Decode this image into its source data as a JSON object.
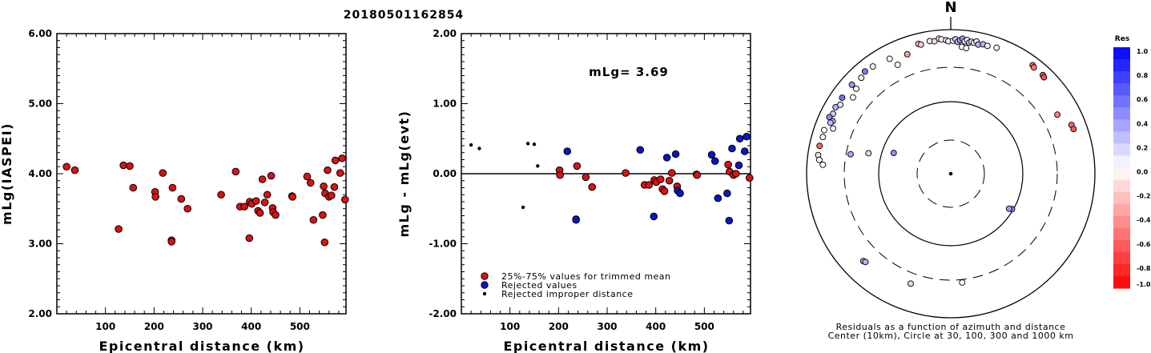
{
  "title": "20180501162854",
  "colors": {
    "trimmed": "#dd1111",
    "rejected": "#0a14c8",
    "improper": "#000000"
  },
  "chart_data": [
    {
      "type": "scatter",
      "xlabel": "Epicentral distance (km)",
      "ylabel": "mLg(IASPEI)",
      "xlim": [
        0,
        595
      ],
      "ylim": [
        2.0,
        6.0
      ],
      "x_ticks": [
        "100",
        "200",
        "300",
        "400",
        "500"
      ],
      "y_ticks": [
        "6.00",
        "5.00",
        "4.00",
        "3.00",
        "2.00"
      ],
      "series": [
        {
          "marker": "red-circle",
          "points": [
            [
              20,
              4.1
            ],
            [
              37,
              4.05
            ],
            [
              127,
              3.21
            ],
            [
              137,
              4.12
            ],
            [
              150,
              4.11
            ],
            [
              157,
              3.8
            ],
            [
              202,
              3.74
            ],
            [
              203,
              3.67
            ],
            [
              218,
              4.01
            ],
            [
              236,
              3.05
            ],
            [
              236,
              3.03
            ],
            [
              238,
              3.8
            ],
            [
              256,
              3.64
            ],
            [
              269,
              3.5
            ],
            [
              338,
              3.7
            ],
            [
              368,
              4.03
            ],
            [
              377,
              3.53
            ],
            [
              386,
              3.53
            ],
            [
              396,
              3.08
            ],
            [
              397,
              3.6
            ],
            [
              401,
              3.57
            ],
            [
              410,
              3.61
            ],
            [
              414,
              3.47
            ],
            [
              418,
              3.44
            ],
            [
              423,
              3.92
            ],
            [
              428,
              3.59
            ],
            [
              433,
              3.7
            ],
            [
              441,
              3.97
            ],
            [
              444,
              3.51
            ],
            [
              445,
              3.45
            ],
            [
              450,
              3.41
            ],
            [
              484,
              3.68
            ],
            [
              485,
              3.67
            ],
            [
              515,
              3.96
            ],
            [
              522,
              3.87
            ],
            [
              528,
              3.34
            ],
            [
              547,
              3.41
            ],
            [
              549,
              3.82
            ],
            [
              551,
              3.02
            ],
            [
              552,
              3.72
            ],
            [
              557,
              4.05
            ],
            [
              560,
              3.67
            ],
            [
              565,
              3.69
            ],
            [
              571,
              3.81
            ],
            [
              573,
              4.19
            ],
            [
              583,
              4.01
            ],
            [
              587,
              4.22
            ],
            [
              593,
              3.63
            ]
          ]
        }
      ]
    },
    {
      "type": "scatter",
      "xlabel": "Epicentral distance (km)",
      "ylabel": "mLg - mLg(evt)",
      "xlim": [
        0,
        595
      ],
      "ylim": [
        -2.0,
        2.0
      ],
      "x_ticks": [
        "100",
        "200",
        "300",
        "400",
        "500"
      ],
      "y_ticks": [
        "2.00",
        "1.00",
        "0.00",
        "-1.00",
        "-2.00"
      ],
      "annotation": "mLg= 3.69",
      "legend_position": "bottom-left",
      "series": [
        {
          "name": "25%-75% values for trimmed mean",
          "marker": "red-circle",
          "points": [
            [
              202,
              0.05
            ],
            [
              203,
              -0.02
            ],
            [
              236,
              -0.65
            ],
            [
              238,
              0.11
            ],
            [
              256,
              -0.05
            ],
            [
              269,
              -0.19
            ],
            [
              338,
              0.01
            ],
            [
              377,
              -0.16
            ],
            [
              386,
              -0.16
            ],
            [
              397,
              -0.09
            ],
            [
              401,
              -0.12
            ],
            [
              410,
              -0.08
            ],
            [
              414,
              -0.22
            ],
            [
              418,
              -0.25
            ],
            [
              428,
              -0.1
            ],
            [
              433,
              0.01
            ],
            [
              444,
              -0.18
            ],
            [
              484,
              -0.01
            ],
            [
              485,
              -0.02
            ],
            [
              549,
              0.13
            ],
            [
              552,
              0.03
            ],
            [
              560,
              -0.02
            ],
            [
              565,
              0.0
            ],
            [
              593,
              -0.06
            ]
          ]
        },
        {
          "name": "Rejected values",
          "marker": "blue-circle",
          "points": [
            [
              218,
              0.32
            ],
            [
              236,
              -0.66
            ],
            [
              368,
              0.34
            ],
            [
              396,
              -0.61
            ],
            [
              423,
              0.23
            ],
            [
              441,
              0.28
            ],
            [
              445,
              -0.24
            ],
            [
              450,
              -0.28
            ],
            [
              515,
              0.27
            ],
            [
              522,
              0.18
            ],
            [
              528,
              -0.35
            ],
            [
              547,
              -0.28
            ],
            [
              551,
              -0.67
            ],
            [
              557,
              0.36
            ],
            [
              571,
              0.12
            ],
            [
              573,
              0.5
            ],
            [
              583,
              0.32
            ],
            [
              587,
              0.53
            ]
          ]
        },
        {
          "name": "Rejected improper distance",
          "marker": "black-dot",
          "points": [
            [
              20,
              0.41
            ],
            [
              37,
              0.36
            ],
            [
              127,
              -0.48
            ],
            [
              137,
              0.43
            ],
            [
              150,
              0.42
            ],
            [
              157,
              0.11
            ]
          ]
        }
      ]
    },
    {
      "type": "polar-scatter",
      "north_label": "N",
      "caption_lines": [
        "Residuals as a function of azimuth and distance",
        "Center (10km), Circle at 30, 100, 300 and 1000 km"
      ],
      "rings_km": [
        30,
        100,
        300,
        1000
      ],
      "points": [
        [
          -14,
          720,
          -0.25
        ],
        [
          -13,
          690,
          -0.2
        ],
        [
          -9,
          730,
          -0.1
        ],
        [
          -7,
          710,
          -0.15
        ],
        [
          -5,
          760,
          0.15
        ],
        [
          -4,
          740,
          0.05
        ],
        [
          -2,
          715,
          0.1
        ],
        [
          -1,
          690,
          0.05
        ],
        [
          1,
          700,
          0.0
        ],
        [
          2,
          735,
          0.2
        ],
        [
          3,
          680,
          0.3
        ],
        [
          4,
          720,
          0.35
        ],
        [
          5,
          760,
          0.4
        ],
        [
          6,
          700,
          -0.1
        ],
        [
          7,
          740,
          0.0
        ],
        [
          8,
          690,
          0.25
        ],
        [
          9,
          715,
          -0.05
        ],
        [
          10,
          700,
          0.05
        ],
        [
          11,
          740,
          0.1
        ],
        [
          12,
          680,
          0.3
        ],
        [
          14,
          710,
          0.3
        ],
        [
          16,
          700,
          -0.1
        ],
        [
          20,
          725,
          0.05
        ],
        [
          5,
          585,
          0.0
        ],
        [
          7,
          570,
          0.0
        ],
        [
          -20,
          580,
          -0.4
        ],
        [
          -40,
          710,
          0.5
        ],
        [
          -36,
          690,
          -0.05
        ],
        [
          -28,
          640,
          0.0
        ],
        [
          -43,
          660,
          -0.1
        ],
        [
          -48,
          700,
          0.4
        ],
        [
          -55,
          690,
          0.55
        ],
        [
          -60,
          700,
          0.3
        ],
        [
          -63,
          680,
          0.2
        ],
        [
          -65,
          720,
          0.45
        ],
        [
          -71,
          720,
          0.0
        ],
        [
          -74,
          700,
          -0.05
        ],
        [
          -78,
          725,
          -0.6
        ],
        [
          -82,
          720,
          -0.15
        ],
        [
          -84,
          680,
          0.0
        ],
        [
          -86,
          600,
          0.0
        ],
        [
          -69,
          560,
          0.05
        ],
        [
          -48,
          580,
          0.0
        ],
        [
          -52,
          525,
          0.0
        ],
        [
          -26,
          480,
          0.0
        ],
        [
          -58,
          640,
          0.1
        ],
        [
          -66,
          620,
          0.3
        ],
        [
          -67,
          650,
          0.25
        ],
        [
          37,
          770,
          -0.6
        ],
        [
          38,
          745,
          -0.55
        ],
        [
          43,
          745,
          -0.65
        ],
        [
          44,
          725,
          -0.7
        ],
        [
          61,
          490,
          -0.5
        ],
        [
          68,
          640,
          -0.6
        ],
        [
          70,
          650,
          -0.65
        ],
        [
          -79,
          260,
          0.35
        ],
        [
          -76,
          150,
          0.15
        ],
        [
          -70,
          70,
          0.45
        ],
        [
          120,
          96,
          0.5
        ],
        [
          121,
          88,
          0.4
        ],
        [
          -135,
          520,
          0.35
        ],
        [
          -136,
          505,
          0.3
        ],
        [
          -160,
          420,
          0.15
        ],
        [
          174,
          330,
          0.0
        ]
      ],
      "colorbar": {
        "title": "Res",
        "labels": [
          "1.0",
          "0.8",
          "0.6",
          "0.4",
          "0.2",
          "0.0",
          "-0.2",
          "-0.4",
          "-0.6",
          "-0.8",
          "-1.0"
        ]
      }
    }
  ]
}
